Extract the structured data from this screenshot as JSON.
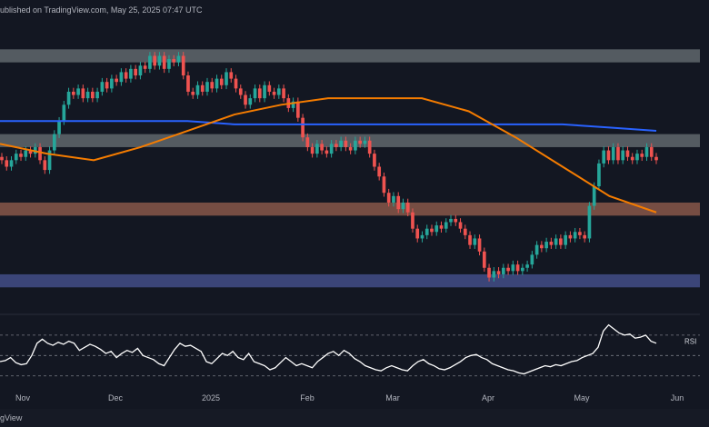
{
  "header": {
    "published": "ublished on TradingView.com, May 25, 2025 07:47 UTC"
  },
  "footer": {
    "brand": "gView"
  },
  "colors": {
    "bg": "#131722",
    "up": "#26a69a",
    "down": "#ef5350",
    "ma_blue": "#2962ff",
    "ma_orange": "#f57c00",
    "zone_grey": "#8a9496",
    "zone_brown": "#c87a5e",
    "zone_blue": "#5c6bc0",
    "rsi": "#ffffff"
  },
  "chart_data": {
    "type": "candlestick",
    "x_labels": [
      "Nov",
      "Dec",
      "2025",
      "Feb",
      "Mar",
      "Apr",
      "May",
      "Jun"
    ],
    "zones": [
      {
        "name": "top-zone",
        "color": "grey",
        "from": 118,
        "to": 114
      },
      {
        "name": "upper-mid-zone",
        "color": "grey",
        "from": 92,
        "to": 88
      },
      {
        "name": "support-zone",
        "color": "brown",
        "from": 71,
        "to": 67
      },
      {
        "name": "demand-zone",
        "color": "blue",
        "from": 49,
        "to": 45
      }
    ],
    "price_range": [
      37,
      127
    ],
    "candles": [
      [
        85,
        84
      ],
      [
        84,
        82
      ],
      [
        82,
        84
      ],
      [
        84,
        86
      ],
      [
        86,
        85
      ],
      [
        85,
        87
      ],
      [
        87,
        86
      ],
      [
        86,
        88
      ],
      [
        88,
        84
      ],
      [
        84,
        81
      ],
      [
        81,
        87
      ],
      [
        87,
        92
      ],
      [
        92,
        96
      ],
      [
        96,
        101
      ],
      [
        101,
        105
      ],
      [
        105,
        104
      ],
      [
        104,
        106
      ],
      [
        106,
        103
      ],
      [
        103,
        105
      ],
      [
        105,
        103
      ],
      [
        103,
        105
      ],
      [
        105,
        108
      ],
      [
        108,
        106
      ],
      [
        106,
        109
      ],
      [
        109,
        108
      ],
      [
        108,
        111
      ],
      [
        111,
        109
      ],
      [
        109,
        112
      ],
      [
        112,
        110
      ],
      [
        110,
        113
      ],
      [
        113,
        112
      ],
      [
        112,
        116
      ],
      [
        116,
        113
      ],
      [
        113,
        116
      ],
      [
        116,
        112
      ],
      [
        112,
        115
      ],
      [
        115,
        114
      ],
      [
        114,
        116
      ],
      [
        116,
        110
      ],
      [
        110,
        105
      ],
      [
        105,
        104
      ],
      [
        104,
        107
      ],
      [
        107,
        105
      ],
      [
        105,
        108
      ],
      [
        108,
        106
      ],
      [
        106,
        109
      ],
      [
        109,
        107
      ],
      [
        107,
        111
      ],
      [
        111,
        109
      ],
      [
        109,
        106
      ],
      [
        106,
        104
      ],
      [
        104,
        101
      ],
      [
        101,
        103
      ],
      [
        103,
        106
      ],
      [
        106,
        103
      ],
      [
        103,
        107
      ],
      [
        107,
        105
      ],
      [
        105,
        104
      ],
      [
        104,
        106
      ],
      [
        106,
        103
      ],
      [
        103,
        100
      ],
      [
        100,
        102
      ],
      [
        102,
        97
      ],
      [
        97,
        91
      ],
      [
        91,
        88
      ],
      [
        88,
        86
      ],
      [
        86,
        89
      ],
      [
        89,
        87
      ],
      [
        87,
        86
      ],
      [
        86,
        89
      ],
      [
        89,
        88
      ],
      [
        88,
        90
      ],
      [
        90,
        88
      ],
      [
        88,
        87
      ],
      [
        87,
        90
      ],
      [
        90,
        89
      ],
      [
        89,
        90
      ],
      [
        90,
        86
      ],
      [
        86,
        82
      ],
      [
        82,
        79
      ],
      [
        79,
        74
      ],
      [
        74,
        71
      ],
      [
        71,
        73
      ],
      [
        73,
        69
      ],
      [
        69,
        71
      ],
      [
        71,
        68
      ],
      [
        68,
        63
      ],
      [
        63,
        60
      ],
      [
        60,
        61
      ],
      [
        61,
        63
      ],
      [
        63,
        62
      ],
      [
        62,
        64
      ],
      [
        64,
        63
      ],
      [
        63,
        65
      ],
      [
        65,
        66
      ],
      [
        66,
        65
      ],
      [
        65,
        63
      ],
      [
        63,
        61
      ],
      [
        61,
        58
      ],
      [
        58,
        60
      ],
      [
        60,
        56
      ],
      [
        56,
        51
      ],
      [
        51,
        48
      ],
      [
        48,
        50
      ],
      [
        50,
        49
      ],
      [
        49,
        51
      ],
      [
        51,
        50
      ],
      [
        50,
        52
      ],
      [
        52,
        50
      ],
      [
        50,
        51
      ],
      [
        51,
        52
      ],
      [
        52,
        55
      ],
      [
        55,
        58
      ],
      [
        58,
        57
      ],
      [
        57,
        59
      ],
      [
        59,
        58
      ],
      [
        58,
        60
      ],
      [
        60,
        58
      ],
      [
        58,
        61
      ],
      [
        61,
        60
      ],
      [
        60,
        62
      ],
      [
        62,
        61
      ],
      [
        61,
        60
      ],
      [
        60,
        70
      ],
      [
        70,
        76
      ],
      [
        76,
        83
      ],
      [
        83,
        87
      ],
      [
        87,
        84
      ],
      [
        84,
        88
      ],
      [
        88,
        84
      ],
      [
        84,
        87
      ],
      [
        87,
        85
      ],
      [
        85,
        84
      ],
      [
        84,
        86
      ],
      [
        86,
        85
      ],
      [
        85,
        88
      ],
      [
        88,
        85
      ],
      [
        85,
        84
      ]
    ],
    "ma_blue": [
      96,
      96,
      96,
      96,
      96,
      95,
      95,
      95,
      95,
      95,
      95,
      95,
      95,
      94,
      93
    ],
    "ma_orange": [
      89,
      86,
      84,
      88,
      93,
      98,
      101,
      103,
      103,
      103,
      99,
      91,
      82,
      73,
      68
    ],
    "rsi": {
      "label": "RSI",
      "range": [
        20,
        85
      ],
      "levels": [
        70,
        50,
        30
      ],
      "values": [
        44,
        45,
        48,
        43,
        41,
        42,
        50,
        62,
        66,
        62,
        60,
        63,
        61,
        64,
        62,
        55,
        58,
        61,
        59,
        56,
        52,
        54,
        48,
        52,
        55,
        53,
        57,
        50,
        48,
        46,
        42,
        40,
        48,
        56,
        62,
        59,
        60,
        57,
        54,
        44,
        42,
        47,
        52,
        50,
        54,
        48,
        46,
        52,
        44,
        42,
        40,
        36,
        38,
        43,
        48,
        44,
        40,
        42,
        40,
        38,
        44,
        48,
        52,
        54,
        50,
        55,
        52,
        47,
        44,
        40,
        38,
        36,
        35,
        38,
        40,
        38,
        36,
        35,
        40,
        44,
        46,
        42,
        40,
        37,
        36,
        38,
        41,
        44,
        48,
        50,
        51,
        48,
        46,
        42,
        40,
        38,
        36,
        35,
        33,
        32,
        34,
        36,
        38,
        40,
        39,
        41,
        40,
        42,
        44,
        45,
        48,
        50,
        52,
        58,
        74,
        80,
        76,
        72,
        70,
        71,
        67,
        68,
        70,
        64,
        62
      ]
    }
  }
}
